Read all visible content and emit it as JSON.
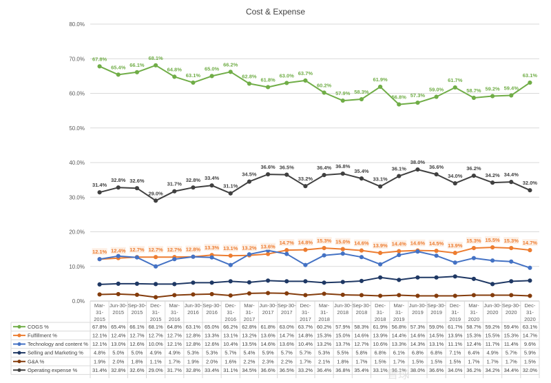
{
  "chart_data": {
    "type": "line",
    "title": "Cost & Expense",
    "xlabel": "",
    "ylabel": "",
    "ylim": [
      0,
      80
    ],
    "yticks": [
      "0.0%",
      "10.0%",
      "20.0%",
      "30.0%",
      "40.0%",
      "50.0%",
      "60.0%",
      "70.0%",
      "80.0%"
    ],
    "grid": true,
    "legend": "data-table-bottom",
    "categories": [
      [
        "Mar-",
        "31-",
        "2015"
      ],
      [
        "Jun-30-",
        "2015"
      ],
      [
        "Sep-30-",
        "2015"
      ],
      [
        "Dec-",
        "31-",
        "2015"
      ],
      [
        "Mar-",
        "31-",
        "2016"
      ],
      [
        "Jun-30-",
        "2016"
      ],
      [
        "Sep-30-",
        "2016"
      ],
      [
        "Dec-",
        "31-",
        "2016"
      ],
      [
        "Mar-",
        "31-",
        "2017"
      ],
      [
        "Jun-30-",
        "2017"
      ],
      [
        "Sep-30-",
        "2017"
      ],
      [
        "Dec-",
        "31-",
        "2017"
      ],
      [
        "Mar-",
        "31-",
        "2018"
      ],
      [
        "Jun-30-",
        "2018"
      ],
      [
        "Sep-30-",
        "2018"
      ],
      [
        "Dec-",
        "31-",
        "2018"
      ],
      [
        "Mar-",
        "31-",
        "2019"
      ],
      [
        "Jun-30-",
        "2019"
      ],
      [
        "Sep-30-",
        "2019"
      ],
      [
        "Dec-",
        "31-",
        "2019"
      ],
      [
        "Mar-",
        "31-",
        "2020"
      ],
      [
        "Jun-30-",
        "2020"
      ],
      [
        "Sep-30-",
        "2020"
      ],
      [
        "Dec-",
        "31-",
        "2020"
      ]
    ],
    "series": [
      {
        "name": "COGS %",
        "color": "#70ad47",
        "labeled": true,
        "values": [
          67.8,
          65.4,
          66.1,
          68.1,
          64.8,
          63.1,
          65.0,
          66.2,
          62.8,
          61.8,
          63.0,
          63.7,
          60.2,
          57.9,
          58.3,
          61.9,
          56.8,
          57.3,
          59.0,
          61.7,
          58.7,
          59.2,
          59.4,
          63.1
        ]
      },
      {
        "name": "Fulfillment %",
        "color": "#ed7d31",
        "labeled": true,
        "values": [
          12.1,
          12.4,
          12.7,
          12.7,
          12.7,
          12.8,
          13.3,
          13.1,
          13.2,
          13.6,
          14.7,
          14.8,
          15.3,
          15.0,
          14.6,
          13.9,
          14.4,
          14.6,
          14.5,
          13.9,
          15.3,
          15.5,
          15.3,
          14.7
        ]
      },
      {
        "name": "Technology and content %",
        "color": "#4472c4",
        "labeled": false,
        "values": [
          12.1,
          13.0,
          12.6,
          10.0,
          12.1,
          12.8,
          12.6,
          10.4,
          13.5,
          14.6,
          13.6,
          10.4,
          13.2,
          13.7,
          12.7,
          10.6,
          13.3,
          14.3,
          13.1,
          11.1,
          12.4,
          11.7,
          11.4,
          9.6
        ]
      },
      {
        "name": "Selling and Marketing %",
        "color": "#1f3864",
        "labeled": false,
        "values": [
          4.8,
          5.0,
          5.0,
          4.9,
          4.9,
          5.3,
          5.3,
          5.7,
          5.4,
          5.9,
          5.7,
          5.7,
          5.3,
          5.5,
          5.8,
          6.8,
          6.1,
          6.8,
          6.8,
          7.1,
          6.4,
          4.9,
          5.7,
          5.9
        ]
      },
      {
        "name": "G&A %",
        "color": "#843c0c",
        "labeled": false,
        "values": [
          1.9,
          2.0,
          1.8,
          1.1,
          1.7,
          1.9,
          2.0,
          1.6,
          2.2,
          2.3,
          2.2,
          1.7,
          2.1,
          1.8,
          1.7,
          1.5,
          1.7,
          1.5,
          1.5,
          1.5,
          1.7,
          1.7,
          1.7,
          1.5
        ]
      },
      {
        "name": "Operating expense %",
        "color": "#404040",
        "labeled": true,
        "values": [
          31.4,
          32.8,
          32.6,
          29.0,
          31.7,
          32.8,
          33.4,
          31.1,
          34.5,
          36.6,
          36.5,
          33.2,
          36.4,
          36.8,
          35.4,
          33.1,
          36.1,
          38.0,
          36.6,
          34.0,
          36.2,
          34.2,
          34.4,
          32.0
        ]
      }
    ]
  },
  "watermark": "雪球"
}
